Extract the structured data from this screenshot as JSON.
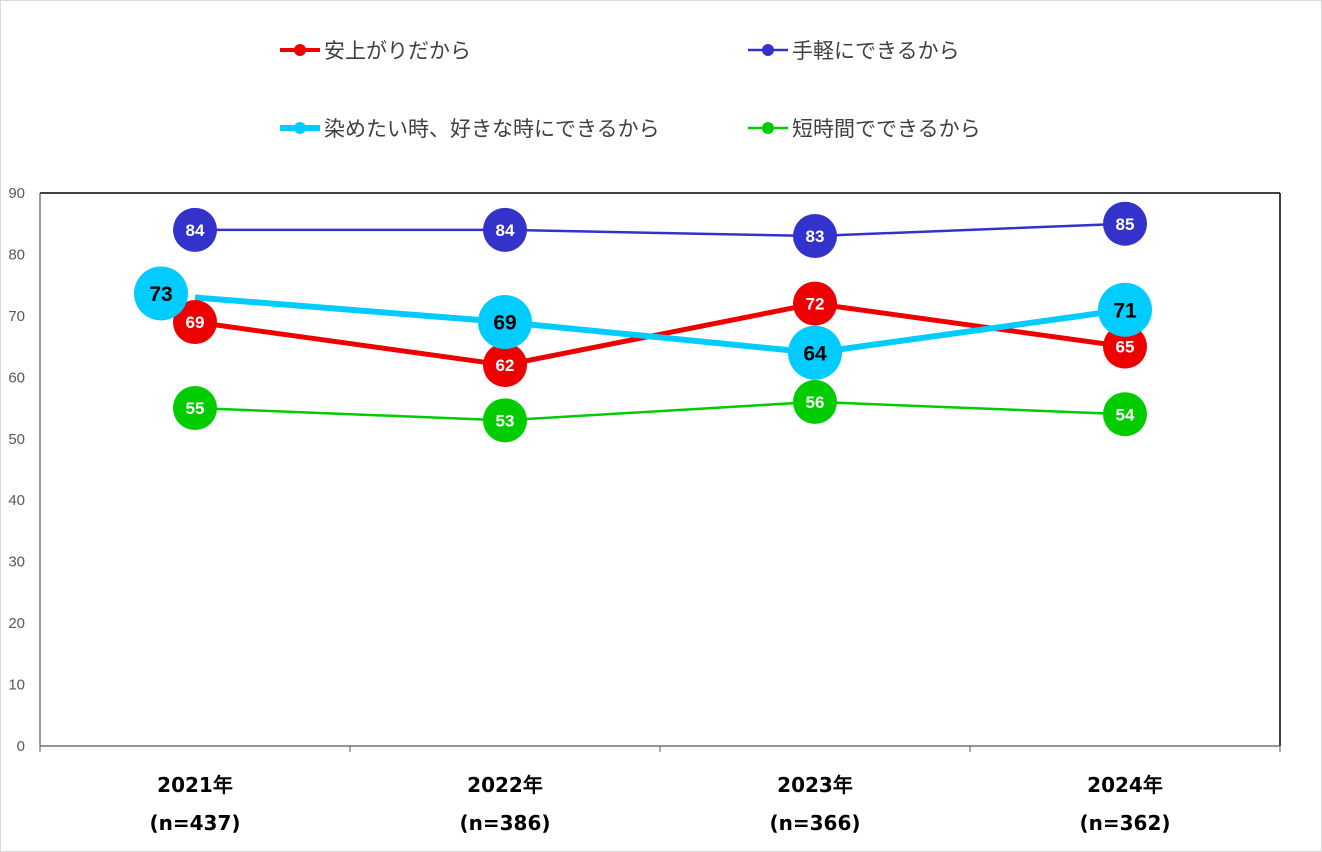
{
  "chart_data": {
    "type": "line",
    "title": "",
    "xlabel": "",
    "ylabel": "",
    "ylim": [
      0,
      90
    ],
    "yticks": [
      0,
      10,
      20,
      30,
      40,
      50,
      60,
      70,
      80,
      90
    ],
    "grid": false,
    "legend_position": "top",
    "categories": [
      "2021年",
      "2022年",
      "2023年",
      "2024年"
    ],
    "category_sublabels": [
      "(n=437)",
      "(n=386)",
      "(n=366)",
      "(n=362)"
    ],
    "series": [
      {
        "name": "安上がりだから",
        "color": "#ee0000",
        "label_color": "#ffffff",
        "values": [
          69,
          62,
          72,
          65
        ],
        "labels": [
          "69",
          "62",
          "72",
          "65"
        ]
      },
      {
        "name": "手軽にできるから",
        "color": "#3333cc",
        "label_color": "#ffffff",
        "values": [
          84,
          84,
          83,
          85
        ],
        "labels": [
          "84",
          "84",
          "83",
          "85"
        ]
      },
      {
        "name": "染めたい時、好きな時にできるから",
        "color": "#00ccff",
        "label_color": "#000000",
        "values": [
          73,
          69,
          64,
          71
        ],
        "labels": [
          "73",
          "69",
          "64",
          "71"
        ]
      },
      {
        "name": "短時間でできるから",
        "color": "#00cc00",
        "label_color": "#ffffff",
        "values": [
          55,
          53,
          56,
          54
        ],
        "labels": [
          "55",
          "53",
          "56",
          "54"
        ]
      }
    ]
  }
}
